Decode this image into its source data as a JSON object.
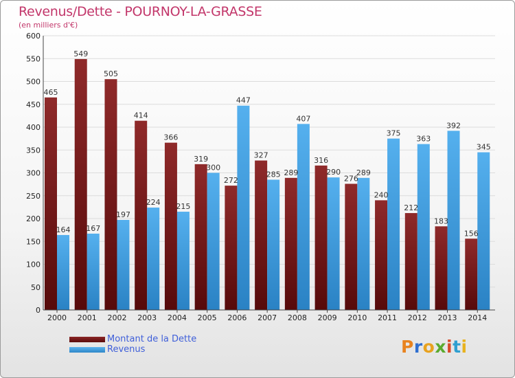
{
  "colors": {
    "dette": "#6e1414",
    "revenus": "#3a9ae0",
    "title": "#c2366a",
    "legend_text": "#3f5fd9"
  },
  "brand": {
    "letters": [
      "P",
      "r",
      "o",
      "x",
      "i",
      "t",
      "i"
    ],
    "letter_colors": [
      "#e8831f",
      "#2f6fd0",
      "#e8a21f",
      "#5aaa2e",
      "#d84a2a",
      "#2f9fd0",
      "#e8b21f"
    ]
  },
  "chart_data": {
    "type": "bar",
    "title": "Revenus/Dette - POURNOY-LA-GRASSE",
    "subtitle": "(en milliers d'€)",
    "xlabel": "",
    "ylabel": "",
    "ylim": [
      0,
      600
    ],
    "yticks": [
      0,
      50,
      100,
      150,
      200,
      250,
      300,
      350,
      400,
      450,
      500,
      550,
      600
    ],
    "grid": true,
    "legend_position": "bottom-left",
    "categories": [
      "2000",
      "2001",
      "2002",
      "2003",
      "2004",
      "2005",
      "2006",
      "2007",
      "2008",
      "2009",
      "2010",
      "2011",
      "2012",
      "2013",
      "2014"
    ],
    "series": [
      {
        "name": "Montant de la Dette",
        "values": [
          465,
          549,
          505,
          414,
          366,
          319,
          272,
          327,
          289,
          316,
          276,
          240,
          212,
          183,
          156
        ]
      },
      {
        "name": "Revenus",
        "values": [
          164,
          167,
          197,
          224,
          215,
          300,
          447,
          285,
          407,
          290,
          289,
          375,
          363,
          392,
          345
        ]
      }
    ]
  }
}
